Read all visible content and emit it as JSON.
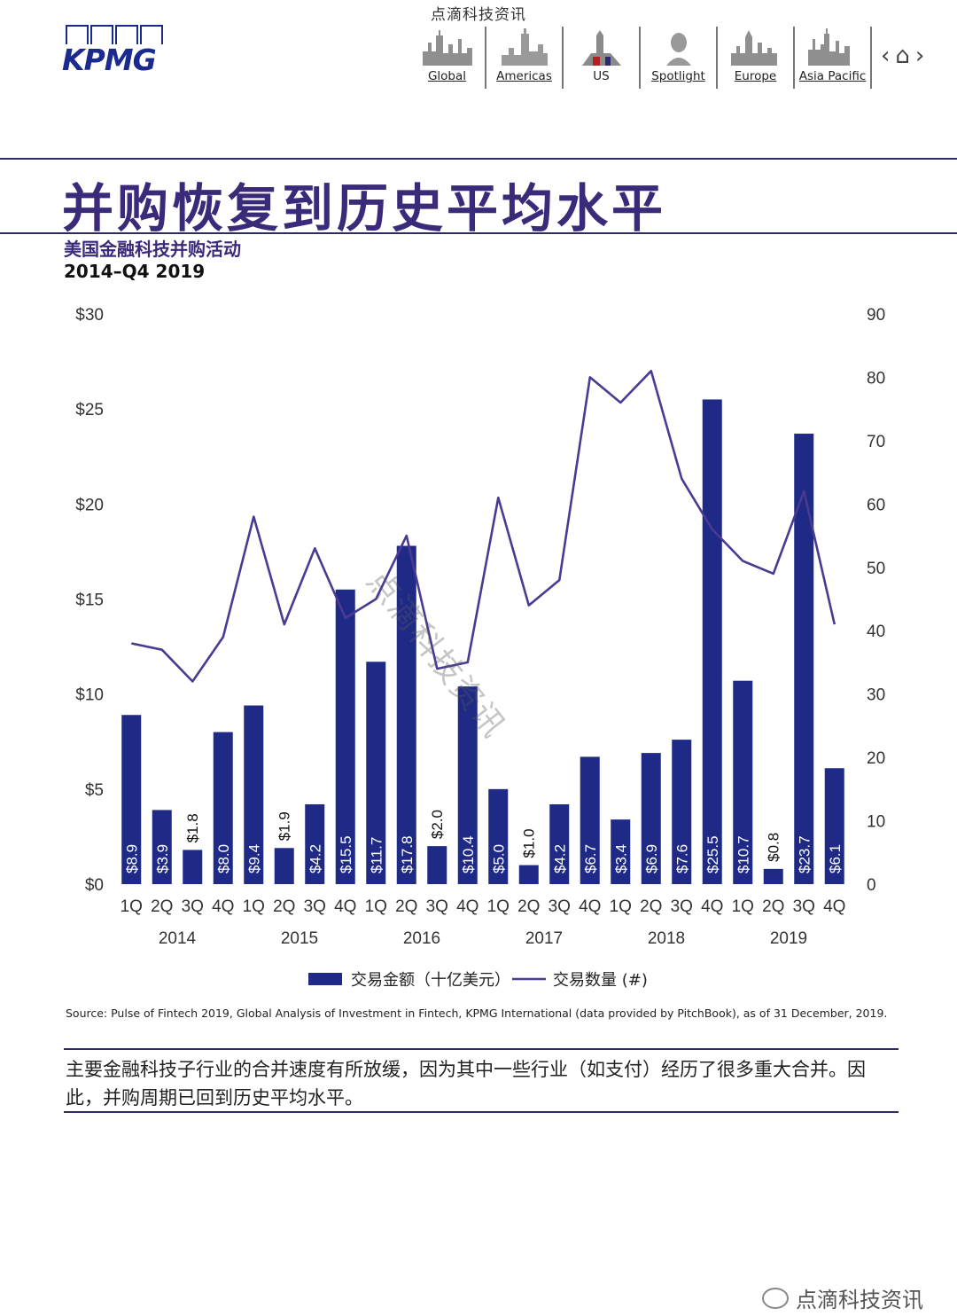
{
  "watermark": {
    "top": "点滴科技资讯",
    "chart": "点滴科技资讯",
    "bottom": "点滴科技资讯"
  },
  "header": {
    "logo_text": "KPMG",
    "nav": [
      {
        "label": "Global"
      },
      {
        "label": "Americas"
      },
      {
        "label": "US"
      },
      {
        "label": "Spotlight"
      },
      {
        "label": "Europe"
      },
      {
        "label": "Asia Pacific"
      }
    ],
    "controls": {
      "prev": "‹",
      "home": "⌂",
      "next": "›"
    }
  },
  "page": {
    "title": "并购恢复到历史平均水平",
    "subtitle": "美国金融科技并购活动",
    "period": "2014–Q4 2019"
  },
  "chart_data": {
    "type": "bar",
    "categories": [
      "1Q",
      "2Q",
      "3Q",
      "4Q",
      "1Q",
      "2Q",
      "3Q",
      "4Q",
      "1Q",
      "2Q",
      "3Q",
      "4Q",
      "1Q",
      "2Q",
      "3Q",
      "4Q",
      "1Q",
      "2Q",
      "3Q",
      "4Q",
      "1Q",
      "2Q",
      "3Q",
      "4Q"
    ],
    "years": [
      "2014",
      "2015",
      "2016",
      "2017",
      "2018",
      "2019"
    ],
    "series": [
      {
        "name": "交易金额（十亿美元）",
        "type": "bar",
        "axis": "left",
        "values": [
          8.9,
          3.9,
          1.8,
          8.0,
          9.4,
          1.9,
          4.2,
          15.5,
          11.7,
          17.8,
          2.0,
          10.4,
          5.0,
          1.0,
          4.2,
          6.7,
          3.4,
          6.9,
          7.6,
          25.5,
          10.7,
          0.8,
          23.7,
          6.1
        ],
        "labels": [
          "$8.9",
          "$3.9",
          "$1.8",
          "$8.0",
          "$9.4",
          "$1.9",
          "$4.2",
          "$15.5",
          "$11.7",
          "$17.8",
          "$2.0",
          "$10.4",
          "$5.0",
          "$1.0",
          "$4.2",
          "$6.7",
          "$3.4",
          "$6.9",
          "$7.6",
          "$25.5",
          "$10.7",
          "$0.8",
          "$23.7",
          "$6.1"
        ]
      },
      {
        "name": "交易数量 (#)",
        "type": "line",
        "axis": "right",
        "values": [
          38,
          37,
          32,
          39,
          58,
          41,
          53,
          42,
          45,
          55,
          34,
          35,
          61,
          44,
          48,
          80,
          76,
          81,
          64,
          56,
          51,
          49,
          62,
          41
        ]
      }
    ],
    "y_left": {
      "range": [
        0,
        30
      ],
      "ticks": [
        "$0",
        "$5",
        "$10",
        "$15",
        "$20",
        "$25",
        "$30"
      ]
    },
    "y_right": {
      "range": [
        0,
        90
      ],
      "ticks": [
        "0",
        "10",
        "20",
        "30",
        "40",
        "50",
        "60",
        "70",
        "80",
        "90"
      ]
    },
    "grid": false,
    "legend_position": "bottom",
    "colors": {
      "bar": "#1f2a86",
      "line": "#4a3a92",
      "axis_text": "#333333"
    }
  },
  "footer": {
    "source": "Source: Pulse of Fintech 2019, Global Analysis of Investment in Fintech, KPMG International (data provided by PitchBook), as of 31 December, 2019.",
    "description": "主要金融科技子行业的合并速度有所放缓，因为其中一些行业（如支付）经历了很多重大合并。因此，并购周期已回到历史平均水平。"
  }
}
